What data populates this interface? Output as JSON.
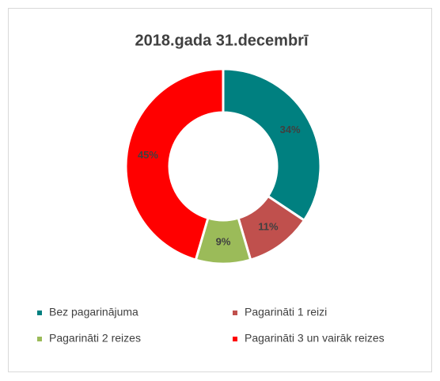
{
  "chart_data": {
    "type": "donut",
    "title": "2018.gada 31.decembrī",
    "categories": [
      "Bez pagarinājuma",
      "Pagarināti 1 reizi",
      "Pagarināti 2 reizes",
      "Pagarināti 3 un vairāk reizes"
    ],
    "values": [
      34,
      11,
      9,
      45
    ],
    "value_labels": [
      "34%",
      "11%",
      "9%",
      "45%"
    ],
    "colors": [
      "#008080",
      "#c0504d",
      "#9bbb59",
      "#ff0000"
    ],
    "legend": "bottom"
  }
}
